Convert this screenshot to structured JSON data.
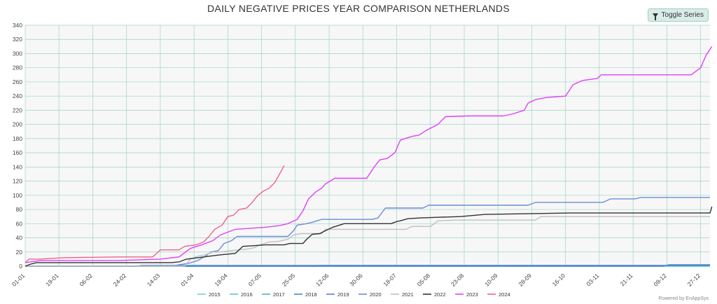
{
  "title": "DAILY NEGATIVE PRICES YEAR COMPARISON NETHERLANDS",
  "toolbar": {
    "toggle_label": "Toggle Series",
    "toggle_icon": "filter-icon"
  },
  "credits": "Powered by EnAppSys",
  "chart_data": {
    "type": "line",
    "xlabel": "",
    "ylabel": "",
    "ylim": [
      0,
      340
    ],
    "yticks": [
      0,
      20,
      40,
      60,
      80,
      100,
      120,
      140,
      160,
      180,
      200,
      220,
      240,
      260,
      280,
      300,
      320,
      340
    ],
    "xlim": [
      0,
      365
    ],
    "xticks": [
      {
        "day": 0,
        "label": "01-01"
      },
      {
        "day": 18,
        "label": "19-01"
      },
      {
        "day": 36,
        "label": "06-02"
      },
      {
        "day": 54,
        "label": "24-02"
      },
      {
        "day": 72,
        "label": "14-03"
      },
      {
        "day": 90,
        "label": "01-04"
      },
      {
        "day": 108,
        "label": "19-04"
      },
      {
        "day": 126,
        "label": "07-05"
      },
      {
        "day": 144,
        "label": "25-05"
      },
      {
        "day": 162,
        "label": "12-06"
      },
      {
        "day": 180,
        "label": "30-06"
      },
      {
        "day": 198,
        "label": "18-07"
      },
      {
        "day": 216,
        "label": "05-08"
      },
      {
        "day": 234,
        "label": "23-08"
      },
      {
        "day": 252,
        "label": "10-09"
      },
      {
        "day": 270,
        "label": "28-09"
      },
      {
        "day": 288,
        "label": "16-10"
      },
      {
        "day": 306,
        "label": "03-11"
      },
      {
        "day": 324,
        "label": "21-11"
      },
      {
        "day": 342,
        "label": "09-12"
      },
      {
        "day": 360,
        "label": "27-12"
      }
    ],
    "grid": true,
    "legend_position": "bottom",
    "series": [
      {
        "name": "2015",
        "color": "#7fd1b9",
        "points": [
          [
            0,
            0
          ],
          [
            365,
            0
          ]
        ]
      },
      {
        "name": "2016",
        "color": "#5bc4e0",
        "points": [
          [
            0,
            0
          ],
          [
            365,
            0
          ]
        ]
      },
      {
        "name": "2017",
        "color": "#4cb6c4",
        "points": [
          [
            0,
            0
          ],
          [
            155,
            0
          ],
          [
            156,
            1
          ],
          [
            365,
            1
          ]
        ]
      },
      {
        "name": "2018",
        "color": "#3a8fb7",
        "points": [
          [
            0,
            0
          ],
          [
            340,
            0
          ],
          [
            343,
            2
          ],
          [
            365,
            2
          ]
        ]
      },
      {
        "name": "2019",
        "color": "#5b84d6",
        "points": [
          [
            0,
            0
          ],
          [
            60,
            0
          ],
          [
            62,
            1
          ],
          [
            365,
            1
          ]
        ]
      },
      {
        "name": "2020",
        "color": "#6a8ed6",
        "points": [
          [
            0,
            0
          ],
          [
            78,
            0
          ],
          [
            82,
            2
          ],
          [
            87,
            4
          ],
          [
            92,
            8
          ],
          [
            96,
            14
          ],
          [
            99,
            20
          ],
          [
            103,
            22
          ],
          [
            106,
            32
          ],
          [
            110,
            36
          ],
          [
            113,
            42
          ],
          [
            140,
            42
          ],
          [
            143,
            50
          ],
          [
            145,
            58
          ],
          [
            150,
            60
          ],
          [
            153,
            62
          ],
          [
            158,
            66
          ],
          [
            185,
            66
          ],
          [
            188,
            68
          ],
          [
            192,
            82
          ],
          [
            212,
            82
          ],
          [
            215,
            86
          ],
          [
            268,
            86
          ],
          [
            272,
            90
          ],
          [
            308,
            90
          ],
          [
            312,
            95
          ],
          [
            325,
            95
          ],
          [
            328,
            97
          ],
          [
            365,
            97
          ]
        ]
      },
      {
        "name": "2021",
        "color": "#c0c0c0",
        "points": [
          [
            0,
            0
          ],
          [
            85,
            0
          ],
          [
            88,
            10
          ],
          [
            92,
            14
          ],
          [
            96,
            16
          ],
          [
            100,
            20
          ],
          [
            104,
            20
          ],
          [
            110,
            22
          ],
          [
            118,
            24
          ],
          [
            122,
            26
          ],
          [
            125,
            30
          ],
          [
            130,
            34
          ],
          [
            135,
            35
          ],
          [
            140,
            38
          ],
          [
            143,
            44
          ],
          [
            147,
            46
          ],
          [
            158,
            46
          ],
          [
            160,
            52
          ],
          [
            185,
            52
          ],
          [
            188,
            52
          ],
          [
            203,
            52
          ],
          [
            206,
            56
          ],
          [
            216,
            56
          ],
          [
            220,
            64
          ],
          [
            230,
            65
          ],
          [
            272,
            65
          ],
          [
            275,
            70
          ],
          [
            365,
            70
          ]
        ]
      },
      {
        "name": "2022",
        "color": "#333333",
        "points": [
          [
            0,
            0
          ],
          [
            3,
            3
          ],
          [
            6,
            5
          ],
          [
            78,
            5
          ],
          [
            82,
            6
          ],
          [
            86,
            10
          ],
          [
            92,
            12
          ],
          [
            98,
            14
          ],
          [
            104,
            16
          ],
          [
            112,
            18
          ],
          [
            116,
            28
          ],
          [
            122,
            29
          ],
          [
            128,
            30
          ],
          [
            135,
            30
          ],
          [
            138,
            30
          ],
          [
            141,
            32
          ],
          [
            148,
            32
          ],
          [
            150,
            38
          ],
          [
            153,
            45
          ],
          [
            157,
            46
          ],
          [
            160,
            50
          ],
          [
            164,
            55
          ],
          [
            170,
            60
          ],
          [
            195,
            60
          ],
          [
            198,
            63
          ],
          [
            200,
            64
          ],
          [
            204,
            67
          ],
          [
            210,
            68
          ],
          [
            220,
            69
          ],
          [
            232,
            70
          ],
          [
            245,
            73
          ],
          [
            290,
            75
          ],
          [
            365,
            75
          ],
          [
            367,
            84
          ]
        ]
      },
      {
        "name": "2023",
        "color": "#e040fb",
        "points": [
          [
            0,
            5
          ],
          [
            8,
            8
          ],
          [
            50,
            8
          ],
          [
            72,
            10
          ],
          [
            82,
            13
          ],
          [
            88,
            25
          ],
          [
            94,
            30
          ],
          [
            100,
            36
          ],
          [
            104,
            44
          ],
          [
            108,
            48
          ],
          [
            112,
            52
          ],
          [
            128,
            55
          ],
          [
            135,
            57
          ],
          [
            140,
            60
          ],
          [
            145,
            66
          ],
          [
            148,
            78
          ],
          [
            151,
            95
          ],
          [
            155,
            105
          ],
          [
            158,
            110
          ],
          [
            160,
            116
          ],
          [
            165,
            124
          ],
          [
            182,
            124
          ],
          [
            186,
            140
          ],
          [
            189,
            150
          ],
          [
            193,
            152
          ],
          [
            197,
            160
          ],
          [
            200,
            178
          ],
          [
            206,
            183
          ],
          [
            210,
            185
          ],
          [
            214,
            192
          ],
          [
            220,
            200
          ],
          [
            224,
            211
          ],
          [
            236,
            212
          ],
          [
            255,
            212
          ],
          [
            260,
            215
          ],
          [
            266,
            220
          ],
          [
            268,
            230
          ],
          [
            272,
            235
          ],
          [
            278,
            238
          ],
          [
            288,
            240
          ],
          [
            292,
            256
          ],
          [
            297,
            262
          ],
          [
            305,
            265
          ],
          [
            307,
            270
          ],
          [
            355,
            270
          ],
          [
            360,
            280
          ],
          [
            363,
            298
          ],
          [
            366,
            310
          ]
        ]
      },
      {
        "name": "2024",
        "color": "#f06292",
        "points": [
          [
            0,
            5
          ],
          [
            2,
            10
          ],
          [
            8,
            10
          ],
          [
            20,
            12
          ],
          [
            50,
            13
          ],
          [
            68,
            13
          ],
          [
            72,
            23
          ],
          [
            82,
            23
          ],
          [
            85,
            28
          ],
          [
            91,
            30
          ],
          [
            95,
            34
          ],
          [
            98,
            42
          ],
          [
            101,
            52
          ],
          [
            105,
            58
          ],
          [
            108,
            70
          ],
          [
            111,
            72
          ],
          [
            114,
            80
          ],
          [
            118,
            82
          ],
          [
            121,
            90
          ],
          [
            124,
            100
          ],
          [
            127,
            106
          ],
          [
            130,
            110
          ],
          [
            133,
            118
          ],
          [
            136,
            132
          ],
          [
            138,
            142
          ]
        ]
      }
    ]
  }
}
